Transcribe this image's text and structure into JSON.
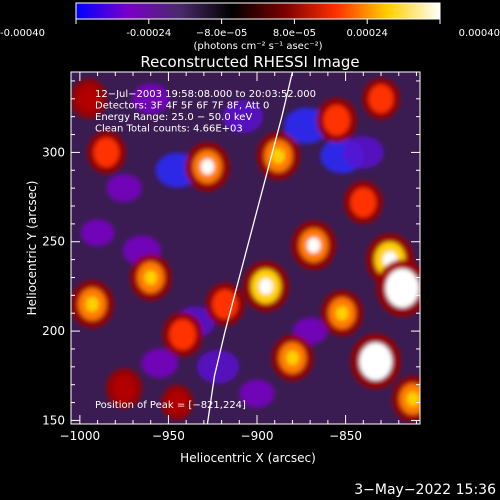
{
  "chart_data": {
    "type": "heatmap",
    "title": "Reconstructed RHESSI Image",
    "xlabel": "Heliocentric X (arcsec)",
    "ylabel": "Heliocentric Y (arcsec)",
    "xlim": [
      -1005,
      -808
    ],
    "ylim": [
      148,
      345
    ],
    "x_ticks": [
      -1000,
      -950,
      -900,
      -850
    ],
    "y_ticks": [
      150,
      200,
      250,
      300
    ],
    "x_tick_labels": [
      "−1000",
      "−950",
      "−900",
      "−850"
    ],
    "y_tick_labels": [
      "150",
      "200",
      "250",
      "300"
    ],
    "colorbar": {
      "range": [
        -0.0004,
        0.0004
      ],
      "ticks": [
        -0.0004,
        -0.00024,
        -8e-05,
        8e-05,
        0.00024,
        0.0004
      ],
      "tick_labels": [
        "-0.00040",
        "-0.00024",
        "−8.0e−05",
        "8.0e−05",
        "0.00024",
        "0.00040"
      ],
      "unit_label": "(photons cm⁻² s⁻¹ asec⁻²)",
      "colors": [
        "#0000ff",
        "#7a00c8",
        "#4a2a6a",
        "#000000",
        "#7a0000",
        "#ff3000",
        "#ffd000",
        "#ffffff"
      ]
    },
    "annotations": [
      "12−Jul−2003 19:58:08.000 to 20:03:52.000",
      "Detectors: 3F 4F 5F 6F 7F 8F, Att 0",
      "Energy Range: 25.0 − 50.0 keV",
      "Clean     Total counts: 4.66E+03"
    ],
    "peak_label": "Position of Peak = [−821,224]",
    "peak": [
      -821,
      224
    ],
    "limb_curve": [
      [
        -928,
        148
      ],
      [
        -924,
        175
      ],
      [
        -918,
        200
      ],
      [
        -910,
        230
      ],
      [
        -902,
        260
      ],
      [
        -894,
        290
      ],
      [
        -886,
        320
      ],
      [
        -880,
        345
      ]
    ],
    "hotspots": [
      {
        "x": -993,
        "y": 215,
        "v": 0.00028
      },
      {
        "x": -985,
        "y": 300,
        "v": 0.00022
      },
      {
        "x": -975,
        "y": 168,
        "v": 0.00018
      },
      {
        "x": -960,
        "y": 230,
        "v": 0.00026
      },
      {
        "x": -942,
        "y": 198,
        "v": 0.00024
      },
      {
        "x": -928,
        "y": 292,
        "v": 0.0003
      },
      {
        "x": -918,
        "y": 215,
        "v": 0.00022
      },
      {
        "x": -895,
        "y": 225,
        "v": 0.00032
      },
      {
        "x": -888,
        "y": 298,
        "v": 0.00028
      },
      {
        "x": -880,
        "y": 185,
        "v": 0.00026
      },
      {
        "x": -868,
        "y": 248,
        "v": 0.0003
      },
      {
        "x": -855,
        "y": 318,
        "v": 0.00024
      },
      {
        "x": -852,
        "y": 210,
        "v": 0.00026
      },
      {
        "x": -840,
        "y": 272,
        "v": 0.00022
      },
      {
        "x": -833,
        "y": 183,
        "v": 0.00038
      },
      {
        "x": -825,
        "y": 240,
        "v": 0.00034
      },
      {
        "x": -818,
        "y": 224,
        "v": 0.0004
      },
      {
        "x": -830,
        "y": 330,
        "v": 0.0002
      },
      {
        "x": -812,
        "y": 162,
        "v": 0.00026
      },
      {
        "x": -995,
        "y": 330,
        "v": 0.00018
      },
      {
        "x": -945,
        "y": 160,
        "v": 0.00012
      }
    ],
    "coldspots": [
      {
        "x": -945,
        "y": 290,
        "v": -0.00028
      },
      {
        "x": -935,
        "y": 205,
        "v": -0.00022
      },
      {
        "x": -955,
        "y": 182,
        "v": -0.00018
      },
      {
        "x": -922,
        "y": 180,
        "v": -0.00026
      },
      {
        "x": -908,
        "y": 320,
        "v": -0.00024
      },
      {
        "x": -872,
        "y": 315,
        "v": -0.0003
      },
      {
        "x": -852,
        "y": 298,
        "v": -0.00028
      },
      {
        "x": -840,
        "y": 300,
        "v": -0.00024
      },
      {
        "x": -975,
        "y": 280,
        "v": -0.00016
      },
      {
        "x": -965,
        "y": 245,
        "v": -0.0002
      },
      {
        "x": -990,
        "y": 255,
        "v": -0.00014
      },
      {
        "x": -870,
        "y": 200,
        "v": -0.00014
      },
      {
        "x": -900,
        "y": 165,
        "v": -0.00016
      },
      {
        "x": -960,
        "y": 330,
        "v": -0.0002
      }
    ]
  },
  "footer": {
    "timestamp": "3−May−2022 15:36"
  }
}
